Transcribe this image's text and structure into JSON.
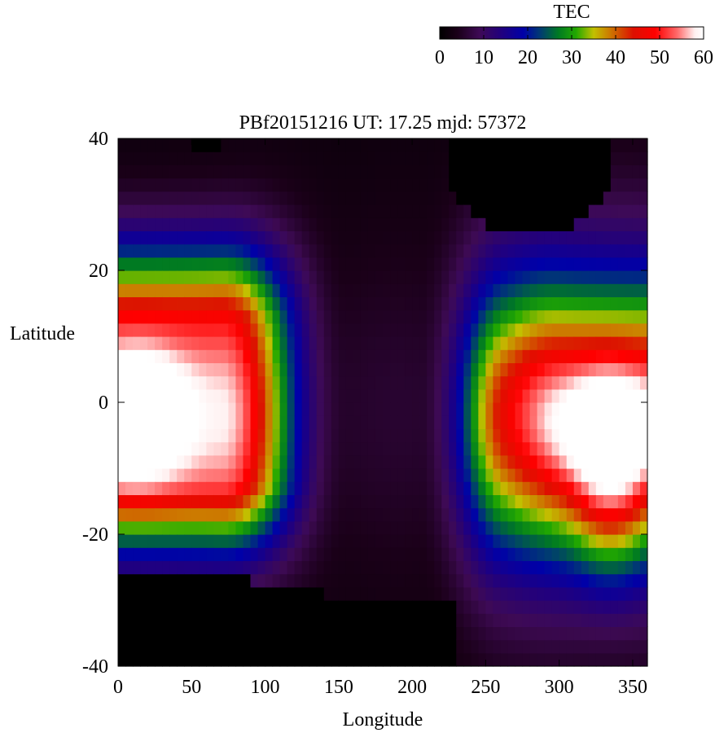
{
  "chart_data": {
    "type": "heatmap",
    "title": "PBf20151216  UT: 17.25  mjd: 57372",
    "xlabel": "Longitude",
    "ylabel": "Latitude",
    "xlim": [
      0,
      360
    ],
    "ylim": [
      -40,
      40
    ],
    "x_ticks": [
      0,
      50,
      100,
      150,
      200,
      250,
      300,
      350
    ],
    "y_ticks": [
      -40,
      -20,
      0,
      20,
      40
    ],
    "grid": false,
    "cell_size": {
      "longitude_deg": 5,
      "latitude_deg": 2
    },
    "colorbar": {
      "label": "TEC",
      "range": [
        0,
        60
      ],
      "ticks": [
        0,
        10,
        20,
        30,
        40,
        50,
        60
      ],
      "placement": "top-right",
      "colors": [
        {
          "value": 0,
          "color": "#000000"
        },
        {
          "value": 4,
          "color": "#1a0018"
        },
        {
          "value": 9,
          "color": "#3e0a55"
        },
        {
          "value": 14,
          "color": "#21007e"
        },
        {
          "value": 19,
          "color": "#0000a8"
        },
        {
          "value": 23,
          "color": "#003d70"
        },
        {
          "value": 27,
          "color": "#007a22"
        },
        {
          "value": 31,
          "color": "#22a800"
        },
        {
          "value": 35,
          "color": "#c2c000"
        },
        {
          "value": 40,
          "color": "#d06000"
        },
        {
          "value": 44,
          "color": "#dd1000"
        },
        {
          "value": 49,
          "color": "#ff0000"
        },
        {
          "value": 54,
          "color": "#ff6a6a"
        },
        {
          "value": 58,
          "color": "#fff0f0"
        },
        {
          "value": 60,
          "color": "#ffffff"
        }
      ]
    },
    "features": {
      "peaks": [
        {
          "lon": 12,
          "lat": -2,
          "tec": 60
        },
        {
          "lon": 335,
          "lat": -5,
          "tec": 60
        }
      ],
      "trough_lon": 190,
      "equatorial_bands": [
        {
          "lon_min": 0,
          "lon_max": 115,
          "level": 46
        },
        {
          "lon_min": 235,
          "lon_max": 360,
          "level": 50
        }
      ],
      "north_dark_region": {
        "lon_min": 225,
        "lon_max": 335,
        "lat_min": 25
      },
      "south_dark_region": {
        "lon_min": 0,
        "lon_max": 230,
        "lat_max": -25
      }
    }
  }
}
